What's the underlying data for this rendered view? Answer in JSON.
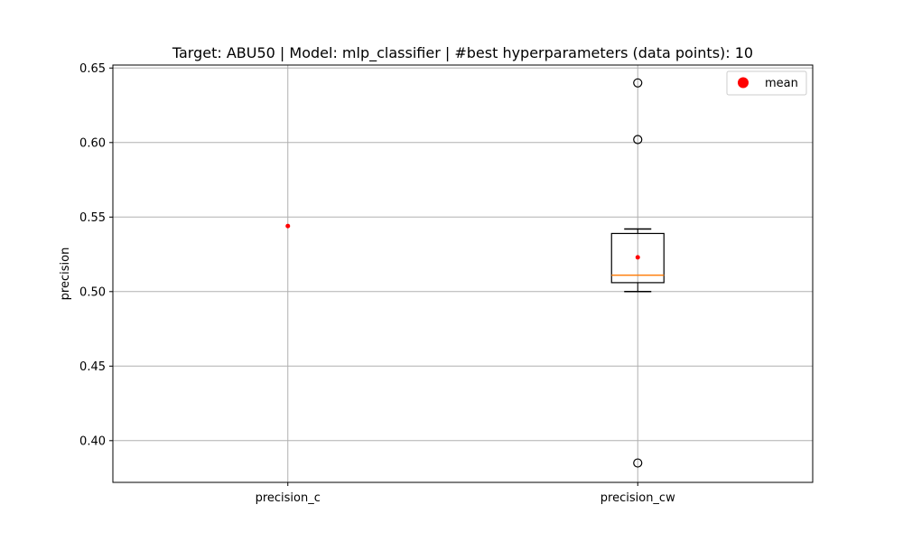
{
  "chart_data": {
    "type": "box",
    "title": "Target: ABU50 | Model: mlp_classifier | #best hyperparameters (data points): 10",
    "xlabel": "",
    "ylabel": "precision",
    "ylim": [
      0.372,
      0.652
    ],
    "yticks": [
      0.4,
      0.45,
      0.5,
      0.55,
      0.6,
      0.65
    ],
    "ytick_labels": [
      "0.40",
      "0.45",
      "0.50",
      "0.55",
      "0.60",
      "0.65"
    ],
    "categories": [
      "precision_c",
      "precision_cw"
    ],
    "grid": true,
    "legend": {
      "position": "top-right",
      "entries": [
        {
          "label": "mean",
          "color": "#ff0000"
        }
      ]
    },
    "boxes": [
      {
        "category": "precision_c",
        "mean": 0.544
      },
      {
        "category": "precision_cw",
        "whisker_low": 0.5,
        "q1": 0.506,
        "median": 0.511,
        "q3": 0.539,
        "whisker_high": 0.542,
        "mean": 0.523,
        "outliers": [
          0.64,
          0.602,
          0.385
        ]
      }
    ],
    "colors": {
      "median": "#ff7f0e",
      "mean": "#ff0000",
      "box": "#000000",
      "grid": "#b0b0b0"
    }
  }
}
